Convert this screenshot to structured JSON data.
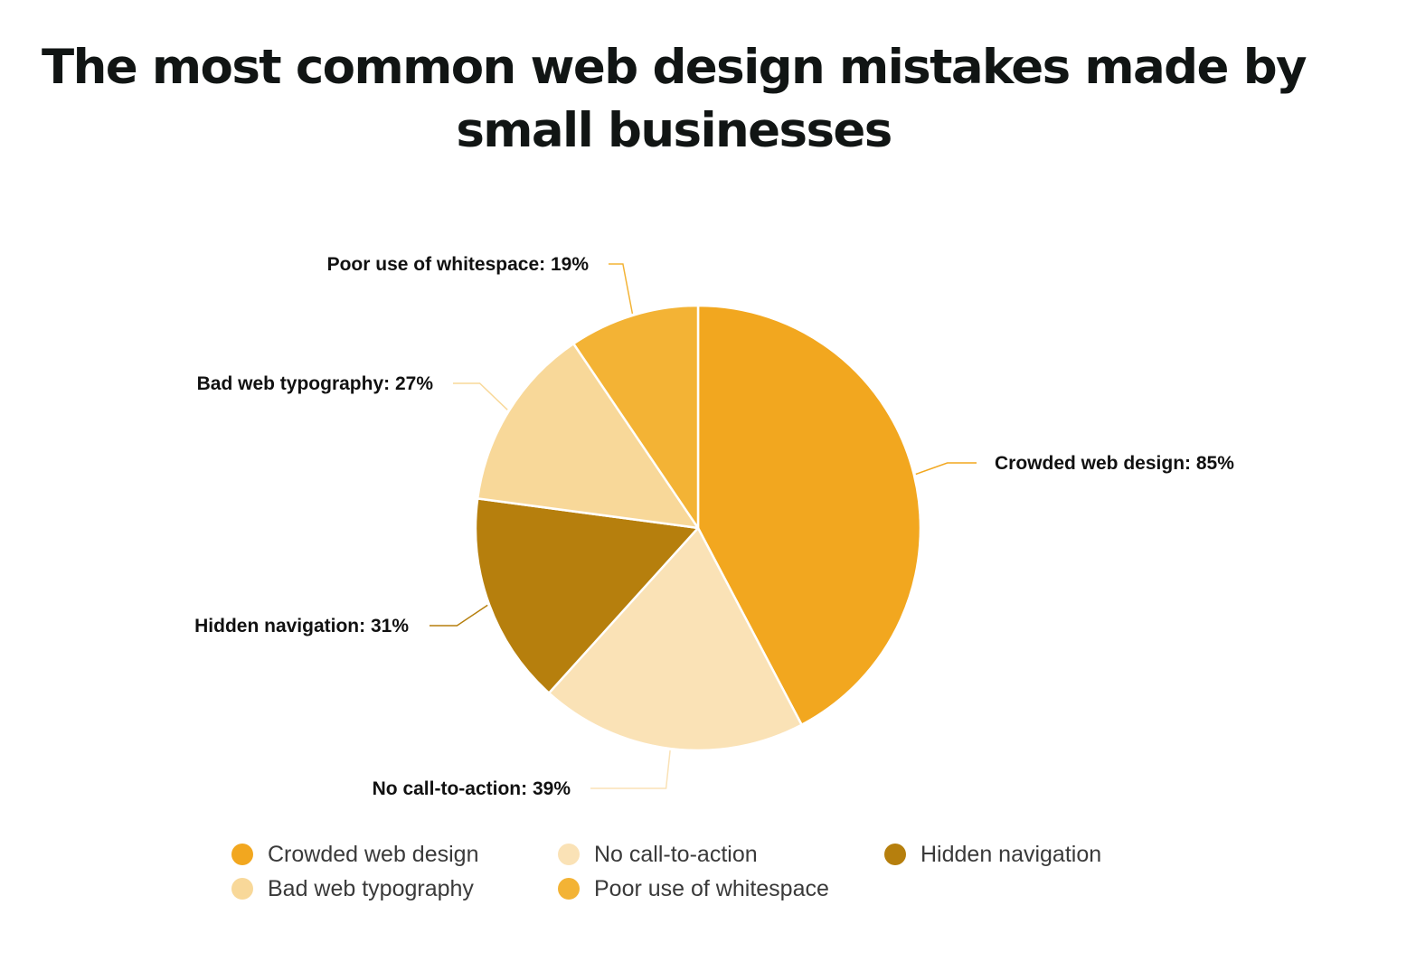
{
  "chart_data": {
    "type": "pie",
    "title": "The most common web design mistakes made by small businesses",
    "legend_placement": "bottom",
    "slices": [
      {
        "label": "Crowded web design",
        "value": 85,
        "value_label": "Crowded web design: 85%",
        "color": "#F2A71F"
      },
      {
        "label": "No call-to-action",
        "value": 39,
        "value_label": "No call-to-action: 39%",
        "color": "#FAE2B6"
      },
      {
        "label": "Hidden navigation",
        "value": 31,
        "value_label": "Hidden navigation: 31%",
        "color": "#B67F0D"
      },
      {
        "label": "Bad web typography",
        "value": 27,
        "value_label": "Bad web typography: 27%",
        "color": "#F8D899"
      },
      {
        "label": "Poor use of whitespace",
        "value": 19,
        "value_label": "Poor use of whitespace: 19%",
        "color": "#F3B335"
      }
    ]
  }
}
